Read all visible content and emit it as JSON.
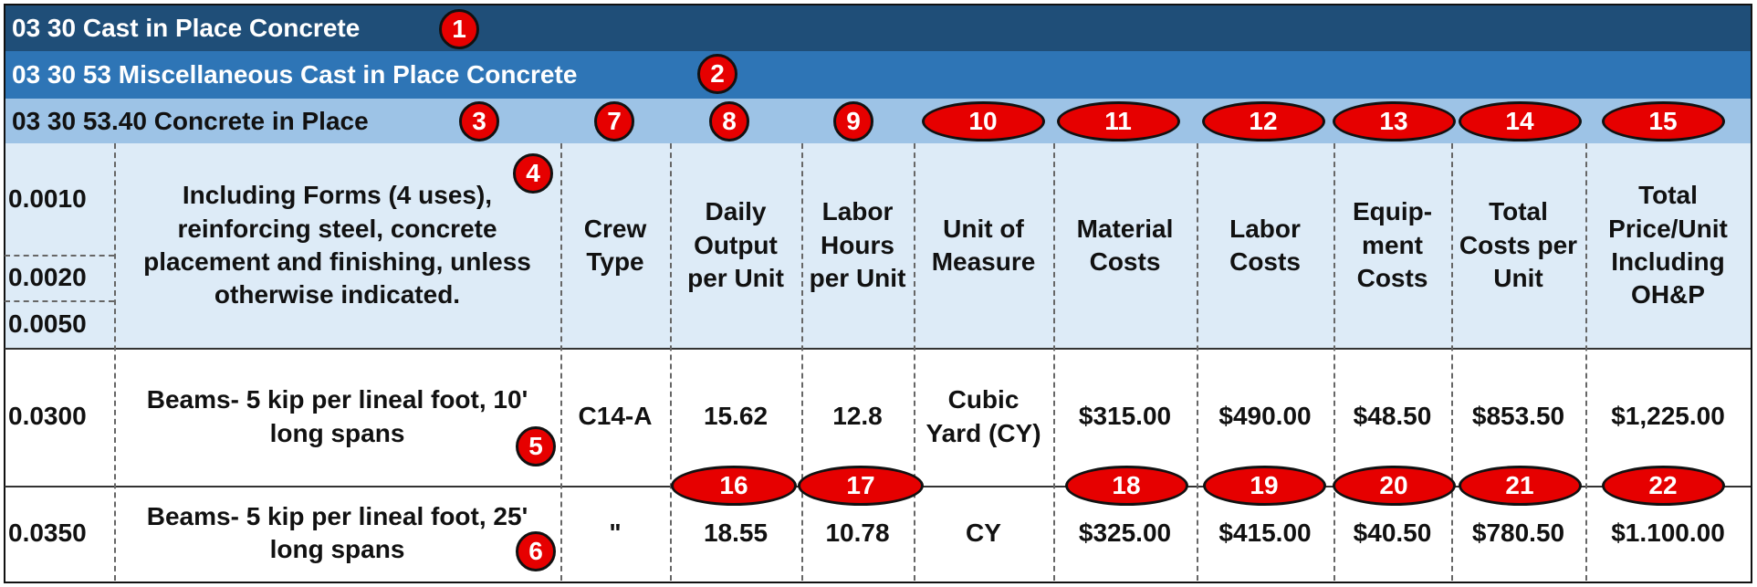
{
  "header": {
    "section": "03 30 Cast in Place Concrete",
    "subsection": "03 30 53 Miscellaneous Cast in Place Concrete",
    "item": "03 30 53.40 Concrete in Place"
  },
  "table": {
    "line_numbers": [
      "0.0010",
      "0.0020",
      "0.0050"
    ],
    "description": "Including Forms (4 uses), reinforcing steel, concrete placement and finishing, unless otherwise indicated.",
    "headers": [
      "Crew Type",
      "Daily Output per Unit",
      "Labor Hours per Unit",
      "Unit of Measure",
      "Material Costs",
      "Labor Costs",
      "Equip-ment Costs",
      "Total Costs per Unit",
      "Total Price/Unit Including OH&P"
    ],
    "rows": [
      [
        "0.0300",
        "Beams- 5 kip per lineal foot, 10' long spans",
        "C14-A",
        "15.62",
        "12.8",
        "Cubic Yard (CY)",
        "$315.00",
        "$490.00",
        "$48.50",
        "$853.50",
        "$1,225.00"
      ],
      [
        "0.0350",
        "Beams- 5 kip per lineal foot, 25' long spans",
        "\"",
        "18.55",
        "10.78",
        "CY",
        "$325.00",
        "$415.00",
        "$40.50",
        "$780.50",
        "$1.100.00"
      ]
    ]
  },
  "callouts": [
    1,
    2,
    3,
    4,
    5,
    6,
    7,
    8,
    9,
    10,
    11,
    12,
    13,
    14,
    15,
    16,
    17,
    18,
    19,
    20,
    21,
    22
  ]
}
